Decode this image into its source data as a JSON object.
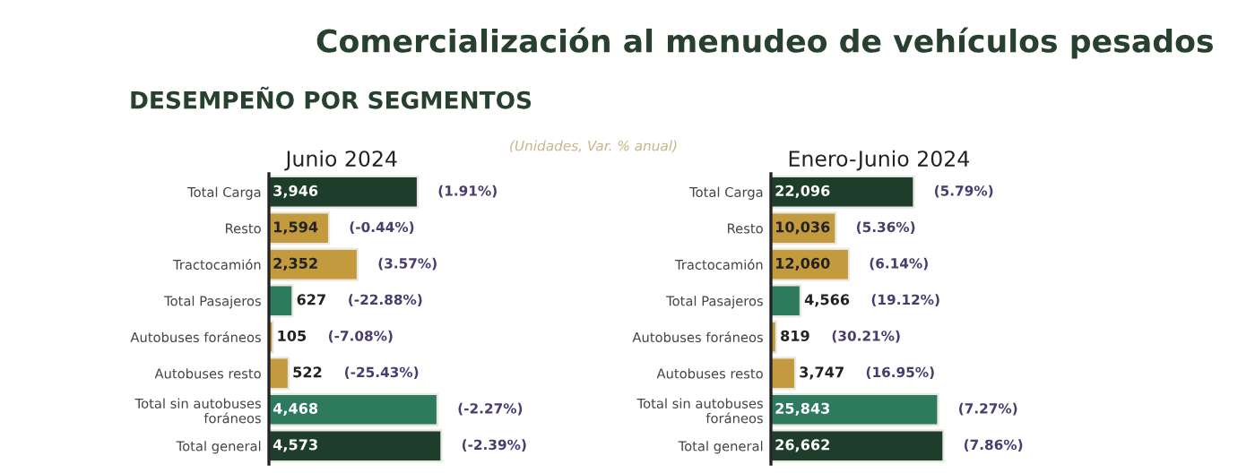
{
  "chart_data": [
    {
      "type": "bar",
      "orientation": "horizontal",
      "title": "Junio 2024",
      "categories": [
        "Total Carga",
        "Resto",
        "Tractocamión",
        "Total Pasajeros",
        "Autobuses foráneos",
        "Autobuses resto",
        "Total sin autobuses\nforáneos",
        "Total general"
      ],
      "values": [
        3946,
        1594,
        2352,
        627,
        105,
        522,
        4468,
        4573
      ],
      "value_labels": [
        "3,946",
        "1,594",
        "2,352",
        "627",
        "105",
        "522",
        "4,468",
        "4,573"
      ],
      "colors": [
        "#1f3d2b",
        "#c39a3e",
        "#c39a3e",
        "#2e7a5e",
        "#c39a3e",
        "#c39a3e",
        "#2e7a5e",
        "#1f3d2b"
      ],
      "tick_labels": "y",
      "annotations": [
        "Comercialización al menudeo de vehículos pesados",
        "DESEMPEÑO POR SEGMENTOS",
        "(Unidades, Var. % anual)",
        "(1.91%)",
        "(-0.44%)",
        "(3.57%)",
        "(-22.88%)",
        "(-7.08%)",
        "(-25.43%)",
        "(-2.27%)",
        "(-2.39%)"
      ]
    },
    {
      "type": "bar",
      "orientation": "horizontal",
      "title": "Enero-Junio 2024",
      "categories": [
        "Total Carga",
        "Resto",
        "Tractocamión",
        "Total Pasajeros",
        "Autobuses foráneos",
        "Autobuses resto",
        "Total sin autobuses\nforáneos",
        "Total general"
      ],
      "values": [
        22096,
        10036,
        12060,
        4566,
        819,
        3747,
        25843,
        26662
      ],
      "value_labels": [
        "22,096",
        "10,036",
        "12,060",
        "4,566",
        "819",
        "3,747",
        "25,843",
        "26,662"
      ],
      "colors": [
        "#1f3d2b",
        "#c39a3e",
        "#c39a3e",
        "#2e7a5e",
        "#c39a3e",
        "#c39a3e",
        "#2e7a5e",
        "#1f3d2b"
      ],
      "tick_labels": "y",
      "annotations": [
        "(5.79%)",
        "(5.36%)",
        "(6.14%)",
        "(19.12%)",
        "(30.21%)",
        "(16.95%)",
        "(7.27%)",
        "(7.86%)"
      ]
    }
  ]
}
